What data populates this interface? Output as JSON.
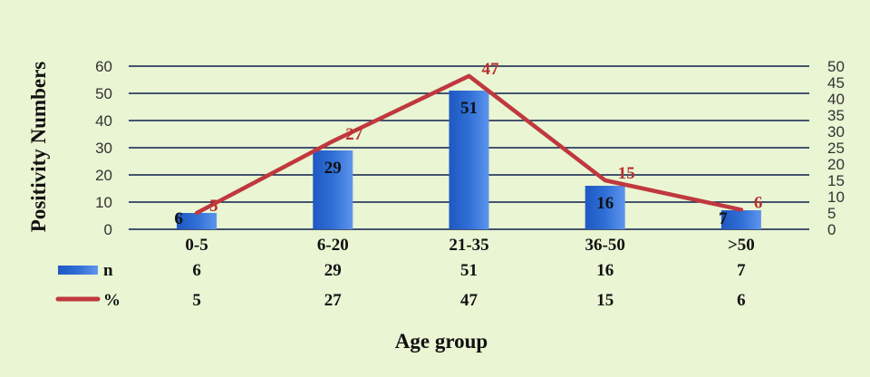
{
  "chart_data": {
    "type": "bar",
    "xlabel": "Age group",
    "ylabel": "Positivity Numbers",
    "categories": [
      "0-5",
      "6-20",
      "21-35",
      "36-50",
      ">50"
    ],
    "series": [
      {
        "name": "n",
        "kind": "bar",
        "axis": "left",
        "values": [
          6,
          29,
          51,
          16,
          7
        ],
        "color": "#2f6fd6"
      },
      {
        "name": "%",
        "kind": "line",
        "axis": "right",
        "values": [
          5,
          27,
          47,
          15,
          6
        ],
        "color": "#c0383e"
      }
    ],
    "ylim_left": [
      0,
      60
    ],
    "yticks_left": [
      0,
      10,
      20,
      30,
      40,
      50,
      60
    ],
    "ylim_right": [
      0,
      50
    ],
    "yticks_right": [
      0,
      5,
      10,
      15,
      20,
      25,
      30,
      35,
      40,
      45,
      50
    ],
    "grid": true,
    "legend": "data-table",
    "colors": {
      "background": "#e9f5d3",
      "gridline": "#0d1f4d",
      "bar": "#2f6fd6",
      "line": "#c0383e"
    }
  }
}
